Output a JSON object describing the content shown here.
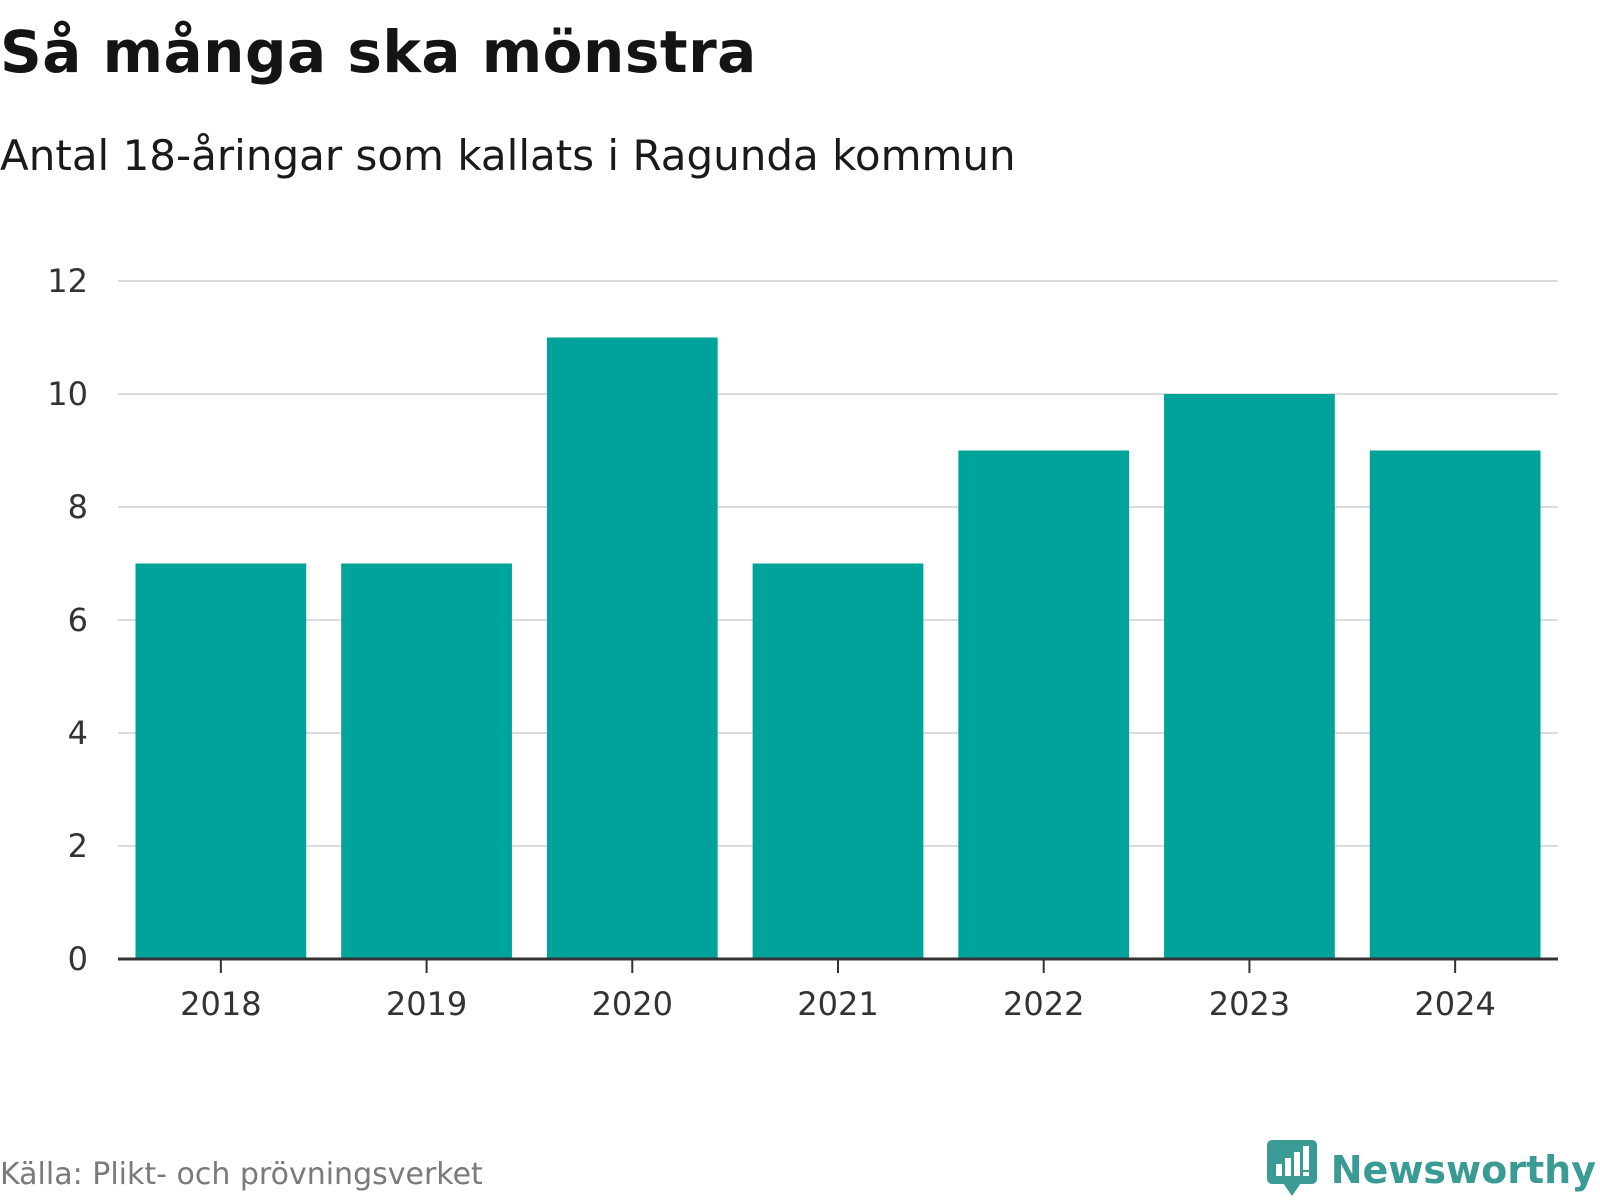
{
  "header": {
    "title": "Så många ska mönstra",
    "subtitle": "Antal 18-åringar som kallats i Ragunda kommun"
  },
  "footer": {
    "source": "Källa: Plikt- och prövningsverket",
    "brand": "Newsworthy",
    "brand_icon": "newsworthy-logo-icon"
  },
  "colors": {
    "bar": "#00a39a",
    "grid": "#dcdcdc",
    "axis": "#333333",
    "brand": "#3a9a94"
  },
  "chart_data": {
    "type": "bar",
    "title": "Så många ska mönstra",
    "subtitle": "Antal 18-åringar som kallats i Ragunda kommun",
    "xlabel": "",
    "ylabel": "",
    "categories": [
      "2018",
      "2019",
      "2020",
      "2021",
      "2022",
      "2023",
      "2024"
    ],
    "values": [
      7,
      7,
      11,
      7,
      9,
      10,
      9
    ],
    "ylim": [
      0,
      12
    ],
    "yticks": [
      "0",
      "2",
      "4",
      "6",
      "8",
      "10",
      "12"
    ],
    "grid": true,
    "legend": "none"
  }
}
